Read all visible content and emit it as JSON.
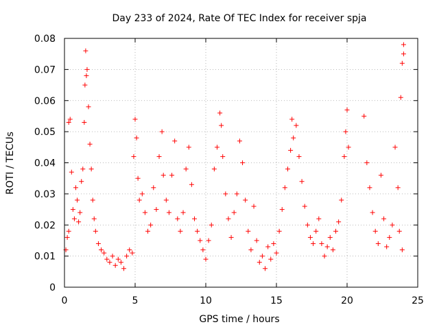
{
  "chart_data": {
    "type": "scatter",
    "title": "Day 233 of 2024, Rate Of TEC Index for receiver spja",
    "xlabel": "GPS time / hours",
    "ylabel": "ROTI / TECUs",
    "xlim": [
      0,
      25
    ],
    "ylim": [
      0,
      0.08
    ],
    "xticks": [
      "0",
      "5",
      "10",
      "15",
      "20",
      "25"
    ],
    "xtick_values": [
      0,
      5,
      10,
      15,
      20,
      25
    ],
    "yticks": [
      "0",
      "0.01",
      "0.02",
      "0.03",
      "0.04",
      "0.05",
      "0.06",
      "0.07",
      "0.08"
    ],
    "ytick_values": [
      0,
      0.01,
      0.02,
      0.03,
      0.04,
      0.05,
      0.06,
      0.07,
      0.08
    ],
    "grid": true,
    "marker": "plus",
    "color": "#ff0000",
    "series": [
      {
        "name": "ROTI",
        "points": [
          [
            0.1,
            0.012
          ],
          [
            0.2,
            0.016
          ],
          [
            0.3,
            0.018
          ],
          [
            0.3,
            0.053
          ],
          [
            0.4,
            0.054
          ],
          [
            0.5,
            0.037
          ],
          [
            0.6,
            0.025
          ],
          [
            0.7,
            0.022
          ],
          [
            0.8,
            0.032
          ],
          [
            0.9,
            0.028
          ],
          [
            1.0,
            0.021
          ],
          [
            1.1,
            0.024
          ],
          [
            1.2,
            0.034
          ],
          [
            1.3,
            0.038
          ],
          [
            1.4,
            0.053
          ],
          [
            1.45,
            0.065
          ],
          [
            1.5,
            0.076
          ],
          [
            1.55,
            0.068
          ],
          [
            1.6,
            0.07
          ],
          [
            1.7,
            0.058
          ],
          [
            1.8,
            0.046
          ],
          [
            1.9,
            0.038
          ],
          [
            2.0,
            0.028
          ],
          [
            2.1,
            0.022
          ],
          [
            2.2,
            0.018
          ],
          [
            2.4,
            0.014
          ],
          [
            2.6,
            0.012
          ],
          [
            2.8,
            0.011
          ],
          [
            3.0,
            0.009
          ],
          [
            3.2,
            0.008
          ],
          [
            3.4,
            0.01
          ],
          [
            3.6,
            0.007
          ],
          [
            3.8,
            0.009
          ],
          [
            4.0,
            0.008
          ],
          [
            4.2,
            0.006
          ],
          [
            4.4,
            0.01
          ],
          [
            4.6,
            0.012
          ],
          [
            4.8,
            0.011
          ],
          [
            4.9,
            0.042
          ],
          [
            5.0,
            0.054
          ],
          [
            5.1,
            0.048
          ],
          [
            5.2,
            0.035
          ],
          [
            5.3,
            0.028
          ],
          [
            5.5,
            0.03
          ],
          [
            5.7,
            0.024
          ],
          [
            5.9,
            0.018
          ],
          [
            6.1,
            0.02
          ],
          [
            6.3,
            0.032
          ],
          [
            6.5,
            0.025
          ],
          [
            6.7,
            0.042
          ],
          [
            6.9,
            0.05
          ],
          [
            7.0,
            0.036
          ],
          [
            7.2,
            0.028
          ],
          [
            7.4,
            0.024
          ],
          [
            7.6,
            0.036
          ],
          [
            7.8,
            0.047
          ],
          [
            8.0,
            0.022
          ],
          [
            8.2,
            0.018
          ],
          [
            8.4,
            0.024
          ],
          [
            8.6,
            0.038
          ],
          [
            8.8,
            0.045
          ],
          [
            9.0,
            0.033
          ],
          [
            9.2,
            0.022
          ],
          [
            9.4,
            0.018
          ],
          [
            9.6,
            0.015
          ],
          [
            9.8,
            0.012
          ],
          [
            10.0,
            0.009
          ],
          [
            10.2,
            0.015
          ],
          [
            10.4,
            0.02
          ],
          [
            10.6,
            0.038
          ],
          [
            10.8,
            0.045
          ],
          [
            11.0,
            0.056
          ],
          [
            11.1,
            0.052
          ],
          [
            11.2,
            0.042
          ],
          [
            11.4,
            0.03
          ],
          [
            11.6,
            0.022
          ],
          [
            11.8,
            0.016
          ],
          [
            12.0,
            0.024
          ],
          [
            12.2,
            0.03
          ],
          [
            12.4,
            0.047
          ],
          [
            12.6,
            0.04
          ],
          [
            12.8,
            0.028
          ],
          [
            13.0,
            0.018
          ],
          [
            13.2,
            0.012
          ],
          [
            13.4,
            0.026
          ],
          [
            13.6,
            0.015
          ],
          [
            13.8,
            0.008
          ],
          [
            14.0,
            0.01
          ],
          [
            14.2,
            0.006
          ],
          [
            14.4,
            0.013
          ],
          [
            14.6,
            0.009
          ],
          [
            14.8,
            0.014
          ],
          [
            15.0,
            0.011
          ],
          [
            15.2,
            0.018
          ],
          [
            15.4,
            0.025
          ],
          [
            15.6,
            0.032
          ],
          [
            15.8,
            0.038
          ],
          [
            16.0,
            0.044
          ],
          [
            16.1,
            0.054
          ],
          [
            16.2,
            0.048
          ],
          [
            16.4,
            0.052
          ],
          [
            16.6,
            0.042
          ],
          [
            16.8,
            0.034
          ],
          [
            17.0,
            0.026
          ],
          [
            17.2,
            0.02
          ],
          [
            17.4,
            0.016
          ],
          [
            17.6,
            0.014
          ],
          [
            17.8,
            0.018
          ],
          [
            18.0,
            0.022
          ],
          [
            18.2,
            0.014
          ],
          [
            18.4,
            0.01
          ],
          [
            18.6,
            0.013
          ],
          [
            18.8,
            0.016
          ],
          [
            19.0,
            0.012
          ],
          [
            19.2,
            0.018
          ],
          [
            19.4,
            0.021
          ],
          [
            19.6,
            0.028
          ],
          [
            19.8,
            0.042
          ],
          [
            19.9,
            0.05
          ],
          [
            20.0,
            0.057
          ],
          [
            20.1,
            0.045
          ],
          [
            21.2,
            0.055
          ],
          [
            21.4,
            0.04
          ],
          [
            21.6,
            0.032
          ],
          [
            21.8,
            0.024
          ],
          [
            22.0,
            0.018
          ],
          [
            22.2,
            0.014
          ],
          [
            22.4,
            0.036
          ],
          [
            22.6,
            0.022
          ],
          [
            22.8,
            0.013
          ],
          [
            23.0,
            0.016
          ],
          [
            23.2,
            0.02
          ],
          [
            23.4,
            0.045
          ],
          [
            23.6,
            0.032
          ],
          [
            23.7,
            0.018
          ],
          [
            23.8,
            0.061
          ],
          [
            23.9,
            0.072
          ],
          [
            24.0,
            0.078
          ],
          [
            24.0,
            0.075
          ],
          [
            23.9,
            0.012
          ]
        ]
      }
    ]
  }
}
